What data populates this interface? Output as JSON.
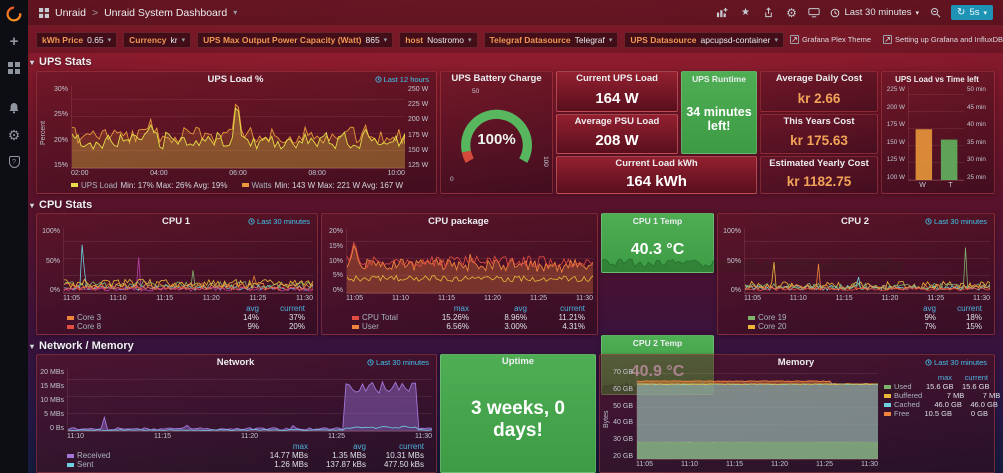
{
  "icons": {
    "caret_down": "▾",
    "star": "★",
    "gear": "⚙",
    "refresh": "↻",
    "plus": "+",
    "question": "?",
    "external": "↗"
  },
  "topnav": {
    "breadcrumb_folder": "Unraid",
    "breadcrumb_sep": ">",
    "title": "Unraid System Dashboard",
    "time_range": "Last 30 minutes",
    "refresh": "5s"
  },
  "varbar": {
    "vars": [
      {
        "label": "kWh Price",
        "value": "0.65"
      },
      {
        "label": "Currency",
        "value": "kr"
      },
      {
        "label": "UPS Max Output Power Capacity (Watt)",
        "value": "865"
      },
      {
        "label": "host",
        "value": "Nostromo"
      },
      {
        "label": "Telegraf Datasource",
        "value": "Telegraf"
      },
      {
        "label": "UPS Datasource",
        "value": "apcupsd-container"
      }
    ],
    "links": [
      {
        "label": "Grafana Plex Theme"
      },
      {
        "label": "Setting up Grafana and InfluxDB for UPS monitoring on unRAID"
      }
    ]
  },
  "rows": {
    "ups": "UPS Stats",
    "cpu": "CPU Stats",
    "netmem": "Network / Memory"
  },
  "time_tag": {
    "last30": "Last 30 minutes",
    "last12h": "Last 12 hours"
  },
  "ups_load": {
    "title": "UPS Load %",
    "y_label": "Percent",
    "y_left": [
      "30%",
      "25%",
      "20%",
      "15%"
    ],
    "y_right": [
      "250 W",
      "225 W",
      "200 W",
      "175 W",
      "150 W",
      "125 W"
    ],
    "x": [
      "02:00",
      "04:00",
      "06:00",
      "08:00",
      "10:00"
    ],
    "legend": [
      {
        "name": "UPS Load",
        "stats": "Min: 17% Max: 26% Avg: 19%",
        "color": "#e5de48"
      },
      {
        "name": "Watts",
        "stats": "Min: 143 W Max: 221 W Avg: 167 W",
        "color": "#e8973a"
      }
    ]
  },
  "battery": {
    "title": "UPS Battery Charge",
    "value": "100%",
    "ticks": [
      "0",
      "50",
      "100"
    ]
  },
  "cur_load": {
    "title": "Current UPS Load",
    "value": "164 W"
  },
  "avg_load": {
    "title": "Average PSU Load",
    "value": "208 W"
  },
  "cur_kwh": {
    "title": "Current Load kWh",
    "value": "164 kWh"
  },
  "runtime": {
    "title": "UPS Runtime",
    "value": "34 minutes left!"
  },
  "daily_cost": {
    "title": "Average Daily Cost",
    "value": "kr 2.66"
  },
  "year_cost": {
    "title": "This Years Cost",
    "value": "kr 175.63"
  },
  "est_cost": {
    "title": "Estimated Yearly Cost",
    "value": "kr 1182.75"
  },
  "load_vs_time": {
    "title": "UPS Load vs Time left",
    "y_left": [
      "225 W",
      "200 W",
      "175 W",
      "150 W",
      "125 W",
      "100 W"
    ],
    "y_right": [
      "50 min",
      "45 min",
      "40 min",
      "35 min",
      "30 min",
      "25 min"
    ],
    "x": [
      "W",
      "T"
    ]
  },
  "cpu1": {
    "title": "CPU 1",
    "y": [
      "100%",
      "50%",
      "0%"
    ],
    "x": [
      "11:05",
      "11:10",
      "11:15",
      "11:20",
      "11:25",
      "11:30"
    ],
    "cols": [
      "avg",
      "current"
    ],
    "legend": [
      {
        "name": "Core 3",
        "color": "#ef843c",
        "vals": [
          "14%",
          "37%"
        ]
      },
      {
        "name": "Core 8",
        "color": "#e24d42",
        "vals": [
          "9%",
          "20%"
        ]
      }
    ]
  },
  "cpupkg": {
    "title": "CPU package",
    "y": [
      "20%",
      "15%",
      "10%",
      "5%",
      "0%"
    ],
    "x": [
      "11:05",
      "11:10",
      "11:15",
      "11:20",
      "11:25",
      "11:30"
    ],
    "cols": [
      "max",
      "avg",
      "current"
    ],
    "legend": [
      {
        "name": "CPU Total",
        "color": "#e24d42",
        "vals": [
          "15.26%",
          "8.96%",
          "11.21%"
        ]
      },
      {
        "name": "User",
        "color": "#ef843c",
        "vals": [
          "6.56%",
          "3.00%",
          "4.31%"
        ]
      }
    ]
  },
  "cpu1temp": {
    "title": "CPU 1 Temp",
    "value": "40.3 °C"
  },
  "cpu2temp": {
    "title": "CPU 2 Temp",
    "value": "40.9 °C"
  },
  "cpu2": {
    "title": "CPU 2",
    "y": [
      "100%",
      "50%",
      "0%"
    ],
    "x": [
      "11:05",
      "11:10",
      "11:15",
      "11:20",
      "11:25",
      "11:30"
    ],
    "cols": [
      "avg",
      "current"
    ],
    "legend": [
      {
        "name": "Core 19",
        "color": "#7eb26d",
        "vals": [
          "9%",
          "18%"
        ]
      },
      {
        "name": "Core 20",
        "color": "#eab839",
        "vals": [
          "7%",
          "15%"
        ]
      }
    ]
  },
  "network": {
    "title": "Network",
    "y": [
      "20 MBs",
      "15 MBs",
      "10 MBs",
      "5 MBs",
      "0 Bs"
    ],
    "x": [
      "11:10",
      "11:15",
      "11:20",
      "11:25",
      "11:30"
    ],
    "cols": [
      "max",
      "avg",
      "current"
    ],
    "legend": [
      {
        "name": "Received",
        "color": "#a178d8",
        "vals": [
          "14.77 MBs",
          "1.35 MBs",
          "10.31 MBs"
        ]
      },
      {
        "name": "Sent",
        "color": "#6ed0e0",
        "vals": [
          "1.26 MBs",
          "137.87 kBs",
          "477.50 kBs"
        ]
      }
    ]
  },
  "uptime": {
    "title": "Uptime",
    "value": "3 weeks, 0 days!"
  },
  "memory": {
    "title": "Memory",
    "y_label": "Bytes",
    "y": [
      "70 GB",
      "60 GB",
      "50 GB",
      "40 GB",
      "30 GB",
      "20 GB"
    ],
    "x": [
      "11:05",
      "11:10",
      "11:15",
      "11:20",
      "11:25",
      "11:30"
    ],
    "cols": [
      "max",
      "current"
    ],
    "legend": [
      {
        "name": "Used",
        "color": "#7eb26d",
        "vals": [
          "15.6 GB",
          "15.6 GB"
        ]
      },
      {
        "name": "Buffered",
        "color": "#eab839",
        "vals": [
          "7 MB",
          "7 MB"
        ]
      },
      {
        "name": "Cached",
        "color": "#6ed0e0",
        "vals": [
          "46.0 GB",
          "46.0 GB"
        ]
      },
      {
        "name": "Free",
        "color": "#ef843c",
        "vals": [
          "10.5 GB",
          "0 GB"
        ]
      }
    ]
  }
}
